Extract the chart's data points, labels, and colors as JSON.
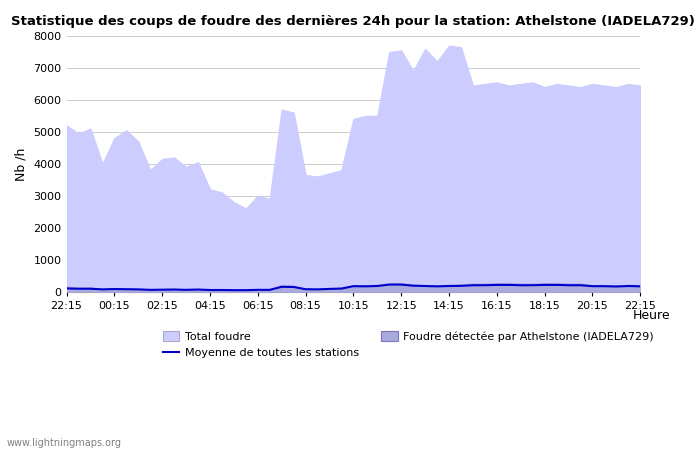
{
  "title": "Statistique des coups de foudre des dernières 24h pour la station: Athelstone (IADELA729)",
  "xlabel": "Heure",
  "ylabel": "Nb /h",
  "ylim": [
    0,
    8000
  ],
  "yticks": [
    0,
    1000,
    2000,
    3000,
    4000,
    5000,
    6000,
    7000,
    8000
  ],
  "background_color": "#ffffff",
  "plot_bg_color": "#ffffff",
  "grid_color": "#cccccc",
  "fill_color_total": "#ccccff",
  "fill_color_station": "#aaaadd",
  "line_color_moyenne": "#0000cc",
  "watermark": "www.lightningmaps.org",
  "legend_total": "Total foudre",
  "legend_moyenne": "Moyenne de toutes les stations",
  "legend_station": "Foudre détectée par Athelstone (IADELA729)",
  "x_labels": [
    "22:15",
    "00:15",
    "02:15",
    "04:15",
    "06:15",
    "08:15",
    "10:15",
    "12:15",
    "14:15",
    "16:15",
    "18:15",
    "20:15",
    "22:15"
  ],
  "total_foudre": [
    5200,
    4950,
    5100,
    4000,
    4800,
    5050,
    4700,
    3800,
    4150,
    4200,
    3900,
    4050,
    3200,
    3100,
    2800,
    2600,
    3000,
    2900,
    5700,
    5600,
    3650,
    3600,
    3700,
    3800,
    5400,
    5500,
    5500,
    7500,
    7550,
    6900,
    7600,
    7200,
    7700,
    7650,
    6450,
    6500,
    6550,
    6450,
    6500,
    6550,
    6400,
    6500,
    6450,
    6400,
    6500,
    6450,
    6400,
    6500,
    6450
  ],
  "station_foudre": [
    150,
    120,
    130,
    80,
    100,
    90,
    80,
    60,
    70,
    80,
    60,
    75,
    55,
    55,
    50,
    50,
    60,
    60,
    200,
    180,
    80,
    80,
    100,
    120,
    200,
    200,
    210,
    260,
    260,
    220,
    200,
    190,
    210,
    220,
    250,
    250,
    260,
    260,
    250,
    250,
    260,
    260,
    250,
    250,
    200,
    200,
    190,
    210,
    200
  ],
  "moyenne_stations": [
    100,
    90,
    90,
    70,
    80,
    75,
    70,
    55,
    60,
    65,
    55,
    65,
    50,
    50,
    45,
    45,
    55,
    55,
    150,
    145,
    75,
    70,
    85,
    95,
    170,
    165,
    175,
    220,
    220,
    185,
    175,
    165,
    175,
    180,
    200,
    200,
    210,
    210,
    200,
    200,
    210,
    210,
    200,
    200,
    170,
    170,
    160,
    175,
    165
  ]
}
